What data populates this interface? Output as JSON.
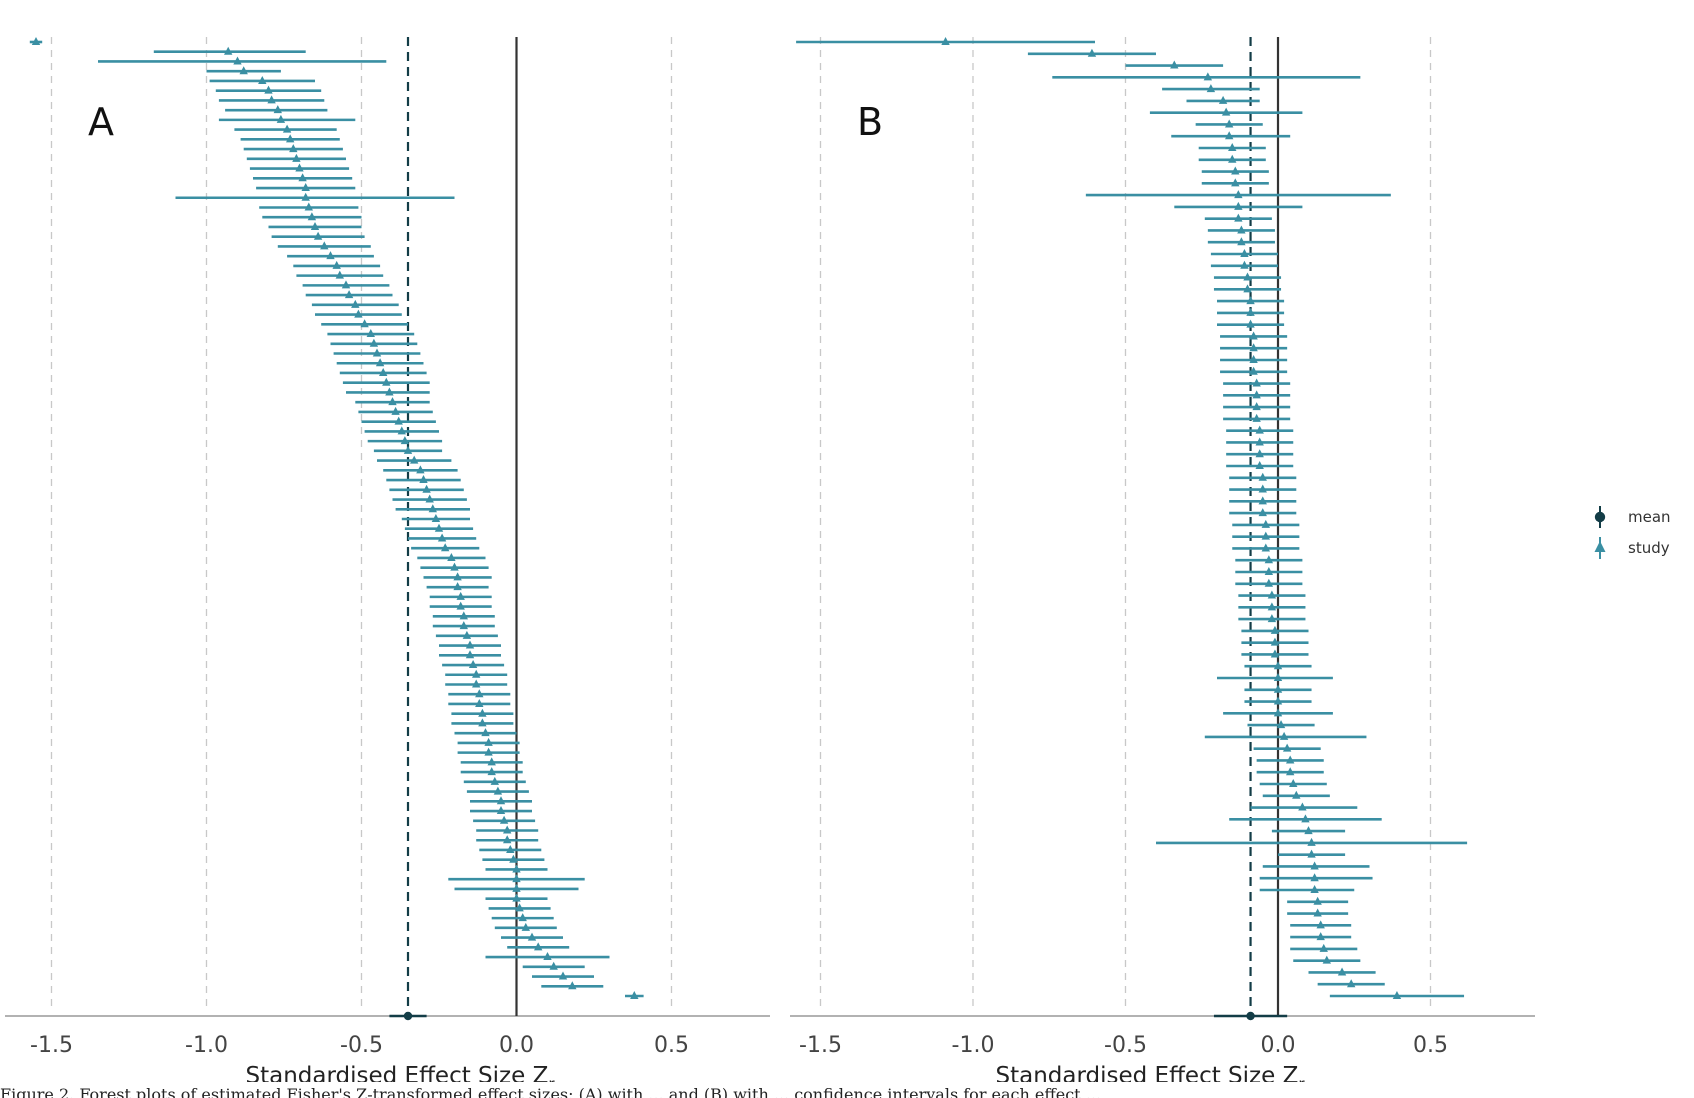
{
  "colors": {
    "study": "#3a8fa3",
    "mean": "#133d47",
    "zero_line": "#333333",
    "grid": "#c8c8c8",
    "axis": "#999999"
  },
  "legend": {
    "position": "right",
    "items": [
      {
        "label": "mean",
        "icon": "circle-marker"
      },
      {
        "label": "study",
        "icon": "triangle-marker"
      }
    ]
  },
  "caption": "Figure 2. Forest plots of estimated Fisher's Z-transformed effect sizes: (A) with ... and (B) with ... confidence intervals for each effect ...",
  "chart_data": [
    {
      "type": "forest",
      "panel_label": "A",
      "xlabel_main": "Standardised Effect Size Z",
      "xlabel_sub": "r",
      "xlim": [
        -1.65,
        0.75
      ],
      "xticks": [
        -1.5,
        -1.0,
        -0.5,
        0.0,
        0.5
      ],
      "xtick_labels": [
        "-1.5",
        "-1.0",
        "-0.5",
        "0.0",
        "0.5"
      ],
      "grid": "vertical dashed at ticks",
      "mean": {
        "estimate": -0.35,
        "lower": -0.41,
        "upper": -0.29
      },
      "studies": [
        [
          -1.55,
          -1.57,
          -1.53
        ],
        [
          -0.93,
          -1.17,
          -0.68
        ],
        [
          -0.9,
          -1.35,
          -0.42
        ],
        [
          -0.88,
          -1.0,
          -0.76
        ],
        [
          -0.82,
          -0.99,
          -0.65
        ],
        [
          -0.8,
          -0.97,
          -0.63
        ],
        [
          -0.79,
          -0.96,
          -0.62
        ],
        [
          -0.77,
          -0.94,
          -0.61
        ],
        [
          -0.76,
          -0.96,
          -0.52
        ],
        [
          -0.74,
          -0.91,
          -0.58
        ],
        [
          -0.73,
          -0.89,
          -0.57
        ],
        [
          -0.72,
          -0.88,
          -0.56
        ],
        [
          -0.71,
          -0.87,
          -0.55
        ],
        [
          -0.7,
          -0.86,
          -0.54
        ],
        [
          -0.69,
          -0.85,
          -0.53
        ],
        [
          -0.68,
          -0.84,
          -0.52
        ],
        [
          -0.68,
          -1.1,
          -0.2
        ],
        [
          -0.67,
          -0.83,
          -0.51
        ],
        [
          -0.66,
          -0.82,
          -0.5
        ],
        [
          -0.65,
          -0.8,
          -0.5
        ],
        [
          -0.64,
          -0.79,
          -0.49
        ],
        [
          -0.62,
          -0.77,
          -0.47
        ],
        [
          -0.6,
          -0.74,
          -0.46
        ],
        [
          -0.58,
          -0.72,
          -0.44
        ],
        [
          -0.57,
          -0.71,
          -0.43
        ],
        [
          -0.55,
          -0.69,
          -0.41
        ],
        [
          -0.54,
          -0.68,
          -0.4
        ],
        [
          -0.52,
          -0.66,
          -0.38
        ],
        [
          -0.51,
          -0.65,
          -0.37
        ],
        [
          -0.49,
          -0.63,
          -0.35
        ],
        [
          -0.47,
          -0.61,
          -0.33
        ],
        [
          -0.46,
          -0.6,
          -0.32
        ],
        [
          -0.45,
          -0.59,
          -0.31
        ],
        [
          -0.44,
          -0.58,
          -0.3
        ],
        [
          -0.43,
          -0.57,
          -0.29
        ],
        [
          -0.42,
          -0.56,
          -0.28
        ],
        [
          -0.41,
          -0.55,
          -0.28
        ],
        [
          -0.4,
          -0.52,
          -0.28
        ],
        [
          -0.39,
          -0.51,
          -0.27
        ],
        [
          -0.38,
          -0.5,
          -0.26
        ],
        [
          -0.37,
          -0.49,
          -0.25
        ],
        [
          -0.36,
          -0.48,
          -0.24
        ],
        [
          -0.35,
          -0.46,
          -0.24
        ],
        [
          -0.33,
          -0.45,
          -0.21
        ],
        [
          -0.31,
          -0.43,
          -0.19
        ],
        [
          -0.3,
          -0.42,
          -0.18
        ],
        [
          -0.29,
          -0.41,
          -0.17
        ],
        [
          -0.28,
          -0.4,
          -0.16
        ],
        [
          -0.27,
          -0.39,
          -0.15
        ],
        [
          -0.26,
          -0.37,
          -0.15
        ],
        [
          -0.25,
          -0.36,
          -0.14
        ],
        [
          -0.24,
          -0.35,
          -0.13
        ],
        [
          -0.23,
          -0.34,
          -0.12
        ],
        [
          -0.21,
          -0.32,
          -0.1
        ],
        [
          -0.2,
          -0.31,
          -0.09
        ],
        [
          -0.19,
          -0.3,
          -0.08
        ],
        [
          -0.19,
          -0.29,
          -0.09
        ],
        [
          -0.18,
          -0.28,
          -0.08
        ],
        [
          -0.18,
          -0.28,
          -0.08
        ],
        [
          -0.17,
          -0.27,
          -0.07
        ],
        [
          -0.17,
          -0.27,
          -0.07
        ],
        [
          -0.16,
          -0.26,
          -0.06
        ],
        [
          -0.15,
          -0.25,
          -0.05
        ],
        [
          -0.15,
          -0.25,
          -0.05
        ],
        [
          -0.14,
          -0.24,
          -0.04
        ],
        [
          -0.13,
          -0.23,
          -0.03
        ],
        [
          -0.13,
          -0.23,
          -0.03
        ],
        [
          -0.12,
          -0.22,
          -0.02
        ],
        [
          -0.12,
          -0.22,
          -0.02
        ],
        [
          -0.11,
          -0.21,
          -0.01
        ],
        [
          -0.11,
          -0.21,
          -0.01
        ],
        [
          -0.1,
          -0.2,
          0.0
        ],
        [
          -0.09,
          -0.19,
          0.01
        ],
        [
          -0.09,
          -0.19,
          0.01
        ],
        [
          -0.08,
          -0.18,
          0.02
        ],
        [
          -0.08,
          -0.18,
          0.02
        ],
        [
          -0.07,
          -0.17,
          0.03
        ],
        [
          -0.06,
          -0.16,
          0.04
        ],
        [
          -0.05,
          -0.15,
          0.05
        ],
        [
          -0.05,
          -0.15,
          0.05
        ],
        [
          -0.04,
          -0.14,
          0.06
        ],
        [
          -0.03,
          -0.13,
          0.07
        ],
        [
          -0.03,
          -0.13,
          0.07
        ],
        [
          -0.02,
          -0.12,
          0.08
        ],
        [
          -0.01,
          -0.11,
          0.09
        ],
        [
          0.0,
          -0.1,
          0.1
        ],
        [
          0.0,
          -0.22,
          0.22
        ],
        [
          0.0,
          -0.2,
          0.2
        ],
        [
          0.0,
          -0.1,
          0.1
        ],
        [
          0.01,
          -0.09,
          0.11
        ],
        [
          0.02,
          -0.08,
          0.12
        ],
        [
          0.03,
          -0.07,
          0.13
        ],
        [
          0.05,
          -0.05,
          0.15
        ],
        [
          0.07,
          -0.03,
          0.17
        ],
        [
          0.1,
          -0.1,
          0.3
        ],
        [
          0.12,
          0.02,
          0.22
        ],
        [
          0.15,
          0.05,
          0.25
        ],
        [
          0.18,
          0.08,
          0.28
        ],
        [
          0.38,
          0.35,
          0.41
        ]
      ]
    },
    {
      "type": "forest",
      "panel_label": "B",
      "xlabel_main": "Standardised Effect Size Z",
      "xlabel_sub": "r",
      "xlim": [
        -1.6,
        0.75
      ],
      "xticks": [
        -1.5,
        -1.0,
        -0.5,
        0.0,
        0.5
      ],
      "xtick_labels": [
        "-1.5",
        "-1.0",
        "-0.5",
        "0.0",
        "0.5"
      ],
      "grid": "vertical dashed at ticks",
      "mean": {
        "estimate": -0.09,
        "lower": -0.21,
        "upper": 0.03
      },
      "studies": [
        [
          -1.09,
          -1.58,
          -0.6
        ],
        [
          -0.61,
          -0.82,
          -0.4
        ],
        [
          -0.34,
          -0.5,
          -0.18
        ],
        [
          -0.23,
          -0.74,
          0.27
        ],
        [
          -0.22,
          -0.38,
          -0.06
        ],
        [
          -0.18,
          -0.3,
          -0.06
        ],
        [
          -0.17,
          -0.42,
          0.08
        ],
        [
          -0.16,
          -0.27,
          -0.05
        ],
        [
          -0.16,
          -0.35,
          0.04
        ],
        [
          -0.15,
          -0.26,
          -0.04
        ],
        [
          -0.15,
          -0.26,
          -0.04
        ],
        [
          -0.14,
          -0.25,
          -0.03
        ],
        [
          -0.14,
          -0.25,
          -0.03
        ],
        [
          -0.13,
          -0.63,
          0.37
        ],
        [
          -0.13,
          -0.34,
          0.08
        ],
        [
          -0.13,
          -0.24,
          -0.02
        ],
        [
          -0.12,
          -0.23,
          -0.01
        ],
        [
          -0.12,
          -0.23,
          -0.01
        ],
        [
          -0.11,
          -0.22,
          0.0
        ],
        [
          -0.11,
          -0.22,
          0.0
        ],
        [
          -0.1,
          -0.21,
          0.01
        ],
        [
          -0.1,
          -0.21,
          0.01
        ],
        [
          -0.09,
          -0.2,
          0.02
        ],
        [
          -0.09,
          -0.2,
          0.02
        ],
        [
          -0.09,
          -0.2,
          0.02
        ],
        [
          -0.08,
          -0.19,
          0.03
        ],
        [
          -0.08,
          -0.19,
          0.03
        ],
        [
          -0.08,
          -0.19,
          0.03
        ],
        [
          -0.08,
          -0.19,
          0.03
        ],
        [
          -0.07,
          -0.18,
          0.04
        ],
        [
          -0.07,
          -0.18,
          0.04
        ],
        [
          -0.07,
          -0.18,
          0.04
        ],
        [
          -0.07,
          -0.18,
          0.04
        ],
        [
          -0.06,
          -0.17,
          0.05
        ],
        [
          -0.06,
          -0.17,
          0.05
        ],
        [
          -0.06,
          -0.17,
          0.05
        ],
        [
          -0.06,
          -0.17,
          0.05
        ],
        [
          -0.05,
          -0.16,
          0.06
        ],
        [
          -0.05,
          -0.16,
          0.06
        ],
        [
          -0.05,
          -0.16,
          0.06
        ],
        [
          -0.05,
          -0.16,
          0.06
        ],
        [
          -0.04,
          -0.15,
          0.07
        ],
        [
          -0.04,
          -0.15,
          0.07
        ],
        [
          -0.04,
          -0.15,
          0.07
        ],
        [
          -0.03,
          -0.14,
          0.08
        ],
        [
          -0.03,
          -0.14,
          0.08
        ],
        [
          -0.03,
          -0.14,
          0.08
        ],
        [
          -0.02,
          -0.13,
          0.09
        ],
        [
          -0.02,
          -0.13,
          0.09
        ],
        [
          -0.02,
          -0.13,
          0.09
        ],
        [
          -0.01,
          -0.12,
          0.1
        ],
        [
          -0.01,
          -0.12,
          0.1
        ],
        [
          -0.01,
          -0.12,
          0.1
        ],
        [
          0.0,
          -0.11,
          0.11
        ],
        [
          0.0,
          -0.2,
          0.18
        ],
        [
          0.0,
          -0.11,
          0.11
        ],
        [
          0.0,
          -0.11,
          0.11
        ],
        [
          0.0,
          -0.18,
          0.18
        ],
        [
          0.01,
          -0.1,
          0.12
        ],
        [
          0.02,
          -0.24,
          0.29
        ],
        [
          0.03,
          -0.08,
          0.14
        ],
        [
          0.04,
          -0.07,
          0.15
        ],
        [
          0.04,
          -0.07,
          0.15
        ],
        [
          0.05,
          -0.06,
          0.16
        ],
        [
          0.06,
          -0.05,
          0.17
        ],
        [
          0.08,
          -0.09,
          0.26
        ],
        [
          0.09,
          -0.16,
          0.34
        ],
        [
          0.1,
          -0.02,
          0.22
        ],
        [
          0.11,
          -0.4,
          0.62
        ],
        [
          0.11,
          0.0,
          0.22
        ],
        [
          0.12,
          -0.05,
          0.3
        ],
        [
          0.12,
          -0.06,
          0.31
        ],
        [
          0.12,
          -0.06,
          0.25
        ],
        [
          0.13,
          0.03,
          0.23
        ],
        [
          0.13,
          0.03,
          0.23
        ],
        [
          0.14,
          0.04,
          0.24
        ],
        [
          0.14,
          0.04,
          0.24
        ],
        [
          0.15,
          0.04,
          0.26
        ],
        [
          0.16,
          0.05,
          0.27
        ],
        [
          0.21,
          0.1,
          0.32
        ],
        [
          0.24,
          0.13,
          0.35
        ],
        [
          0.39,
          0.17,
          0.61
        ]
      ]
    }
  ]
}
